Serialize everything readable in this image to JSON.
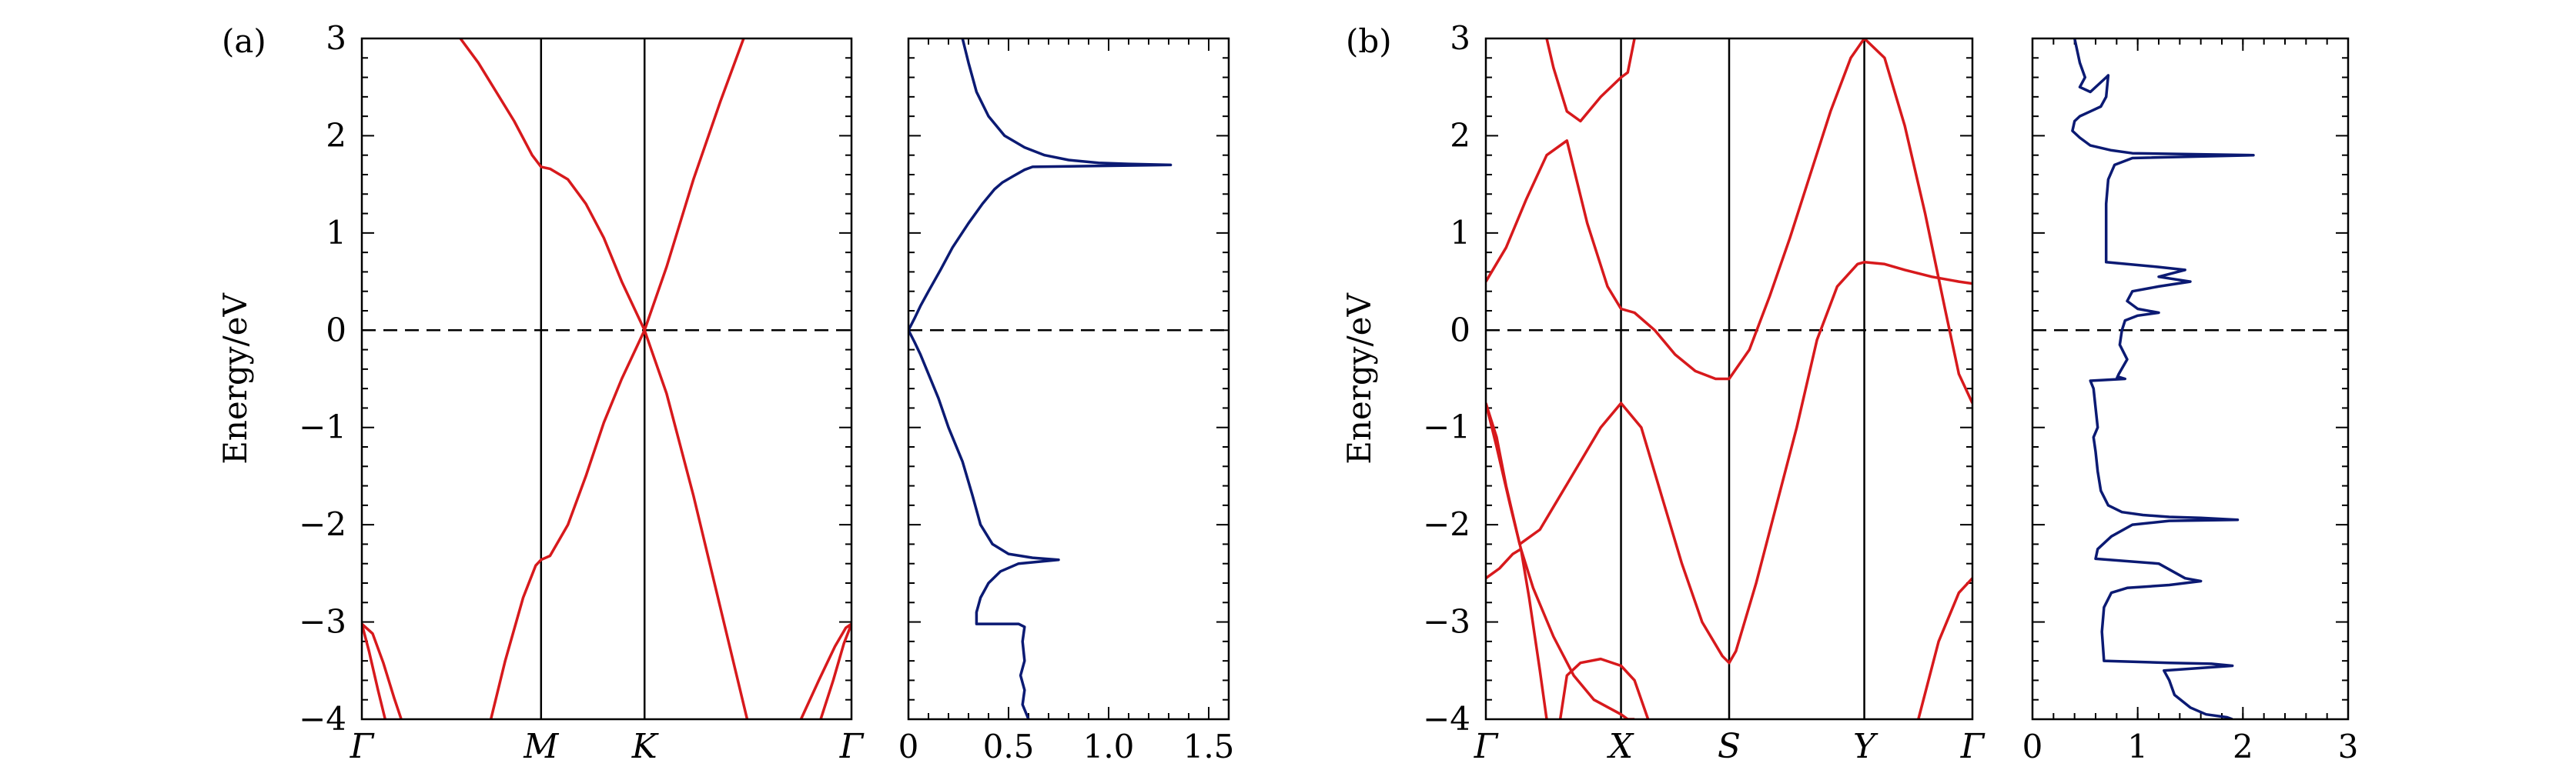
{
  "figure": {
    "panel_labels": [
      "(a)",
      "(b)"
    ]
  },
  "colors": {
    "band": "#d7191c",
    "dos": "#0b1a73",
    "axis": "#000000",
    "fermi": "#000000"
  },
  "chart_data": [
    {
      "id": "a-bands",
      "type": "line",
      "panel_label": "(a)",
      "title": "",
      "xlabel": "",
      "ylabel": "Energy/eV",
      "ylim": [
        -4,
        3
      ],
      "yticks": [
        -4,
        -3,
        -2,
        -1,
        0,
        1,
        2,
        3
      ],
      "ytick_labels": [
        "−4",
        "−3",
        "−2",
        "−1",
        "0",
        "1",
        "2",
        "3"
      ],
      "kpath_labels": [
        "Γ",
        "M",
        "K",
        "Γ"
      ],
      "kpath_positions": [
        0,
        1,
        1.5774,
        2.732
      ],
      "fermi_level": 0,
      "series": [
        {
          "x": [
            0.55,
            0.65,
            0.75,
            0.85,
            0.95,
            1.0,
            1.05,
            1.15,
            1.25,
            1.35,
            1.45,
            1.5774,
            1.7,
            1.85,
            2.0,
            2.15
          ],
          "y": [
            3.0,
            2.75,
            2.45,
            2.15,
            1.8,
            1.68,
            1.66,
            1.55,
            1.3,
            0.95,
            0.5,
            0.0,
            -0.65,
            -1.7,
            -2.85,
            -4.0
          ]
        },
        {
          "x": [
            0.72,
            0.8,
            0.9,
            0.97,
            1.0,
            1.05,
            1.15,
            1.25,
            1.35,
            1.45,
            1.5774,
            1.7,
            1.85,
            2.0,
            2.13
          ],
          "y": [
            -4.0,
            -3.4,
            -2.75,
            -2.42,
            -2.36,
            -2.32,
            -2.0,
            -1.5,
            -0.95,
            -0.5,
            0.0,
            0.65,
            1.55,
            2.35,
            3.0
          ]
        },
        {
          "x": [
            0.0,
            0.06,
            0.12,
            0.18,
            0.22
          ],
          "y": [
            -3.02,
            -3.12,
            -3.42,
            -3.78,
            -4.0
          ]
        },
        {
          "x": [
            0.0,
            0.04,
            0.09,
            0.13
          ],
          "y": [
            -3.02,
            -3.3,
            -3.7,
            -4.0
          ]
        },
        {
          "x": [
            2.45,
            2.55,
            2.64,
            2.7,
            2.732
          ],
          "y": [
            -4.0,
            -3.6,
            -3.25,
            -3.06,
            -3.02
          ]
        },
        {
          "x": [
            2.56,
            2.63,
            2.69,
            2.732
          ],
          "y": [
            -4.0,
            -3.6,
            -3.22,
            -3.02
          ]
        }
      ]
    },
    {
      "id": "a-dos",
      "type": "line",
      "title": "",
      "xlim": [
        0,
        1.6
      ],
      "xticks": [
        0,
        0.5,
        1.0,
        1.5
      ],
      "xtick_labels": [
        "0",
        "0.5",
        "1.0",
        "1.5"
      ],
      "ylim": [
        -4,
        3
      ],
      "fermi_level": 0,
      "series": [
        {
          "x": [
            0.27,
            0.3,
            0.34,
            0.4,
            0.48,
            0.58,
            0.68,
            0.8,
            0.95,
            1.1,
            1.31,
            0.62,
            0.58,
            0.52,
            0.47,
            0.43,
            0.37,
            0.3,
            0.22,
            0.16,
            0.1,
            0.06,
            0.03,
            0.01,
            0.0,
            0.01,
            0.03,
            0.06,
            0.1,
            0.15,
            0.2,
            0.27,
            0.32,
            0.36,
            0.42,
            0.5,
            0.62,
            0.75,
            0.55,
            0.46,
            0.4,
            0.36,
            0.34,
            0.34,
            0.55,
            0.58,
            0.57,
            0.58,
            0.56,
            0.58,
            0.57,
            0.6
          ],
          "y": [
            3.0,
            2.75,
            2.45,
            2.2,
            2.0,
            1.88,
            1.8,
            1.75,
            1.72,
            1.71,
            1.7,
            1.68,
            1.65,
            1.58,
            1.52,
            1.45,
            1.3,
            1.1,
            0.85,
            0.62,
            0.4,
            0.25,
            0.12,
            0.04,
            0.0,
            -0.04,
            -0.12,
            -0.25,
            -0.45,
            -0.7,
            -1.0,
            -1.35,
            -1.7,
            -2.0,
            -2.2,
            -2.3,
            -2.34,
            -2.36,
            -2.4,
            -2.48,
            -2.6,
            -2.75,
            -2.9,
            -3.02,
            -3.02,
            -3.05,
            -3.2,
            -3.4,
            -3.55,
            -3.7,
            -3.85,
            -4.0
          ]
        }
      ]
    },
    {
      "id": "b-bands",
      "type": "line",
      "panel_label": "(b)",
      "title": "",
      "xlabel": "",
      "ylabel": "Energy/eV",
      "ylim": [
        -4,
        3
      ],
      "yticks": [
        -4,
        -3,
        -2,
        -1,
        0,
        1,
        2,
        3
      ],
      "ytick_labels": [
        "−4",
        "−3",
        "−2",
        "−1",
        "0",
        "1",
        "2",
        "3"
      ],
      "kpath_labels": [
        "Γ",
        "X",
        "S",
        "Y",
        "Γ"
      ],
      "kpath_positions": [
        0,
        1,
        1.8,
        2.8,
        3.6
      ],
      "fermi_level": 0,
      "series": [
        {
          "x": [
            0.0,
            0.15,
            0.3,
            0.45,
            0.6,
            0.75,
            0.9,
            1.0,
            1.1,
            1.25,
            1.4,
            1.55,
            1.7,
            1.8,
            1.95,
            2.1,
            2.25,
            2.4,
            2.55,
            2.7,
            2.8,
            2.95,
            3.1,
            3.25,
            3.4,
            3.5,
            3.6
          ],
          "y": [
            0.5,
            0.85,
            1.35,
            1.8,
            1.95,
            1.1,
            0.45,
            0.22,
            0.18,
            0.0,
            -0.25,
            -0.42,
            -0.5,
            -0.5,
            -0.2,
            0.35,
            0.95,
            1.6,
            2.25,
            2.8,
            3.0,
            2.8,
            2.1,
            1.2,
            0.2,
            -0.45,
            -0.75
          ]
        },
        {
          "x": [
            0.45,
            0.5,
            0.6,
            0.7,
            0.85,
            1.0,
            1.05,
            1.1
          ],
          "y": [
            3.0,
            2.7,
            2.25,
            2.15,
            2.4,
            2.6,
            2.65,
            3.0
          ]
        },
        {
          "x": [
            0.0,
            0.08,
            0.15,
            0.25,
            0.4,
            0.55,
            0.7,
            0.85,
            1.0,
            1.15,
            1.3,
            1.45,
            1.6,
            1.75,
            1.8,
            1.85,
            2.0,
            2.15,
            2.3,
            2.45,
            2.6,
            2.75,
            2.8,
            2.95,
            3.1,
            3.3,
            3.5,
            3.6
          ],
          "y": [
            -0.75,
            -1.1,
            -1.6,
            -2.2,
            -2.05,
            -1.7,
            -1.35,
            -1.0,
            -0.75,
            -1.0,
            -1.7,
            -2.4,
            -3.0,
            -3.35,
            -3.42,
            -3.3,
            -2.6,
            -1.8,
            -1.0,
            -0.1,
            0.45,
            0.68,
            0.7,
            0.68,
            0.62,
            0.55,
            0.5,
            0.48
          ]
        },
        {
          "x": [
            0.0,
            0.1,
            0.2,
            0.26,
            0.35,
            0.5,
            0.65,
            0.8,
            1.0,
            1.05,
            1.1
          ],
          "y": [
            -2.55,
            -2.45,
            -2.3,
            -2.25,
            -2.65,
            -3.15,
            -3.55,
            -3.8,
            -3.95,
            -4.0,
            -4.0
          ]
        },
        {
          "x": [
            0.0,
            0.08,
            0.18,
            0.26,
            0.32,
            0.4,
            0.45
          ],
          "y": [
            -0.75,
            -1.2,
            -1.8,
            -2.25,
            -2.75,
            -3.5,
            -4.0
          ]
        },
        {
          "x": [
            0.55,
            0.6,
            0.7,
            0.85,
            1.0,
            1.1,
            1.15,
            1.2
          ],
          "y": [
            -4.0,
            -3.55,
            -3.42,
            -3.38,
            -3.45,
            -3.6,
            -3.8,
            -4.0
          ]
        },
        {
          "x": [
            3.2,
            3.35,
            3.5,
            3.6
          ],
          "y": [
            -4.0,
            -3.2,
            -2.7,
            -2.55
          ]
        }
      ]
    },
    {
      "id": "b-dos",
      "type": "line",
      "title": "",
      "xlim": [
        0,
        3
      ],
      "xticks": [
        0,
        1,
        2,
        3
      ],
      "xtick_labels": [
        "0",
        "1",
        "2",
        "3"
      ],
      "ylim": [
        -4,
        3
      ],
      "fermi_level": 0,
      "series": [
        {
          "x": [
            0.4,
            0.42,
            0.45,
            0.5,
            0.45,
            0.55,
            0.7,
            0.72,
            0.7,
            0.65,
            0.55,
            0.45,
            0.4,
            0.38,
            0.45,
            0.55,
            0.75,
            0.95,
            2.1,
            0.95,
            0.78,
            0.72,
            0.7,
            0.7,
            0.7,
            1.2,
            1.45,
            1.2,
            1.5,
            1.2,
            0.95,
            0.9,
            1.0,
            1.2,
            1.0,
            0.88,
            0.85,
            0.83,
            0.9,
            0.82,
            0.8,
            0.82,
            0.88,
            0.55,
            0.58,
            0.6,
            0.62,
            0.58,
            0.6,
            0.62,
            0.65,
            0.72,
            0.85,
            1.05,
            1.3,
            1.6,
            1.95,
            1.3,
            0.95,
            0.75,
            0.62,
            0.6,
            1.2,
            1.45,
            1.6,
            1.3,
            0.9,
            0.75,
            0.68,
            0.66,
            0.68,
            1.3,
            1.7,
            1.9,
            1.25,
            1.3,
            1.35,
            1.5,
            1.65,
            1.85,
            1.9
          ],
          "y": [
            3.0,
            2.9,
            2.75,
            2.6,
            2.5,
            2.45,
            2.6,
            2.62,
            2.4,
            2.3,
            2.25,
            2.2,
            2.15,
            2.05,
            1.98,
            1.9,
            1.85,
            1.82,
            1.8,
            1.77,
            1.7,
            1.55,
            1.3,
            1.0,
            0.7,
            0.65,
            0.62,
            0.55,
            0.5,
            0.45,
            0.4,
            0.3,
            0.22,
            0.18,
            0.15,
            0.1,
            0.0,
            -0.15,
            -0.3,
            -0.45,
            -0.5,
            -0.48,
            -0.5,
            -0.52,
            -0.6,
            -0.8,
            -1.0,
            -1.1,
            -1.25,
            -1.45,
            -1.65,
            -1.8,
            -1.87,
            -1.9,
            -1.92,
            -1.93,
            -1.95,
            -1.96,
            -2.0,
            -2.12,
            -2.25,
            -2.35,
            -2.4,
            -2.55,
            -2.58,
            -2.62,
            -2.65,
            -2.7,
            -2.85,
            -3.1,
            -3.4,
            -3.42,
            -3.43,
            -3.45,
            -3.5,
            -3.6,
            -3.75,
            -3.88,
            -3.95,
            -3.98,
            -4.0
          ]
        }
      ]
    }
  ]
}
